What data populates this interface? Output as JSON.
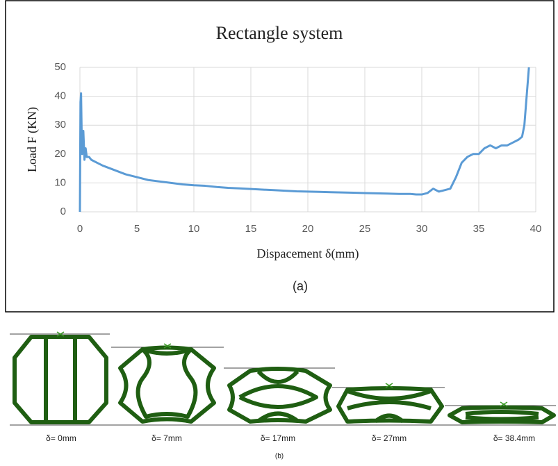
{
  "chart_data": {
    "type": "line",
    "title": "Rectangle system",
    "x_label": "Dispacement δ(mm)",
    "y_label": "Load F (KN)",
    "caption": "(a)",
    "xlim": [
      0,
      40
    ],
    "xticks": [
      0,
      5,
      10,
      15,
      20,
      25,
      30,
      35,
      40
    ],
    "ylim": [
      0,
      50
    ],
    "yticks": [
      0,
      10,
      20,
      30,
      40,
      50
    ],
    "grid": true,
    "color": "#5b9bd5",
    "x": [
      0,
      0.05,
      0.1,
      0.15,
      0.2,
      0.3,
      0.4,
      0.5,
      0.6,
      0.8,
      1,
      1.5,
      2,
      3,
      4,
      5,
      6,
      7,
      8,
      9,
      10,
      11,
      12,
      13,
      14,
      15,
      16,
      17,
      18,
      19,
      20,
      21,
      22,
      23,
      24,
      25,
      26,
      27,
      28,
      29,
      29.5,
      30,
      30.5,
      31,
      31.5,
      32,
      32.5,
      33,
      33.5,
      34,
      34.5,
      35,
      35.5,
      36,
      36.5,
      37,
      37.5,
      38,
      38.5,
      38.8,
      39,
      39.2,
      39.4
    ],
    "values": [
      0,
      38,
      41,
      28,
      20,
      28,
      18,
      22,
      19,
      19,
      18,
      17,
      16,
      14.5,
      13,
      12,
      11,
      10.5,
      10,
      9.5,
      9.2,
      9,
      8.6,
      8.3,
      8.1,
      7.9,
      7.7,
      7.5,
      7.3,
      7.1,
      7,
      6.9,
      6.8,
      6.7,
      6.6,
      6.5,
      6.4,
      6.3,
      6.2,
      6.2,
      6,
      6,
      6.5,
      8,
      7,
      7.5,
      8,
      12,
      17,
      19,
      20,
      20,
      22,
      23,
      22,
      23,
      23,
      24,
      25,
      26,
      30,
      40,
      50
    ]
  },
  "figure_b": {
    "labels": [
      "δ= 0mm",
      "δ= 7mm",
      "δ= 17mm",
      "δ= 27mm",
      "δ= 38.4mm"
    ],
    "caption": "(b)"
  }
}
